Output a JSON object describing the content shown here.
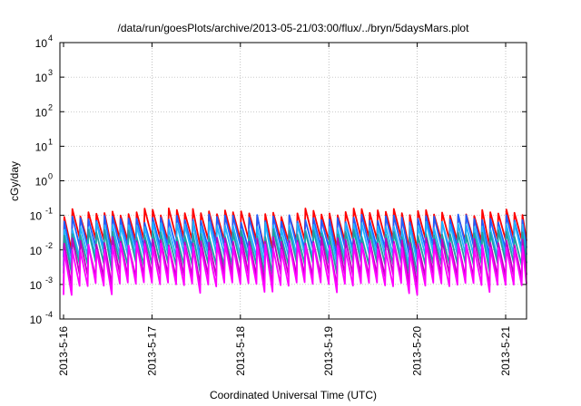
{
  "chart_data": {
    "type": "line",
    "title": "/data/run/goesPlots/archive/2013-05-21/03:00/flux/../bryn/5daysMars.plot",
    "xlabel": "Coordinated Universal Time (UTC)",
    "ylabel": "cGy/day",
    "yscale": "log",
    "ylim": [
      0.0001,
      10000
    ],
    "xlim": [
      "2013-05-16",
      "2013-05-21 03:00"
    ],
    "x_ticks": [
      "2013-5-16",
      "2013-5-17",
      "2013-5-18",
      "2013-5-19",
      "2013-5-20",
      "2013-5-21"
    ],
    "y_ticks": [
      {
        "base": "10",
        "exp": "-4"
      },
      {
        "base": "10",
        "exp": "-3"
      },
      {
        "base": "10",
        "exp": "-2"
      },
      {
        "base": "10",
        "exp": "-1"
      },
      {
        "base": "10",
        "exp": "0"
      },
      {
        "base": "10",
        "exp": "1"
      },
      {
        "base": "10",
        "exp": "2"
      },
      {
        "base": "10",
        "exp": "3"
      },
      {
        "base": "10",
        "exp": "4"
      }
    ],
    "grid": true,
    "legend": "none",
    "pattern": {
      "description": "sawtooth: sharp rise at each step then decay; roughly 11 cycles per day",
      "cycles_per_day": 11,
      "deep_dips_days": [
        0.05,
        0.55,
        1.55,
        2.32,
        3.12,
        3.95,
        4.82
      ]
    },
    "series": [
      {
        "color": "#ff0000",
        "peak": 0.12,
        "trough": 0.02
      },
      {
        "color": "#1f5fff",
        "peak": 0.08,
        "trough": 0.012
      },
      {
        "color": "#1fb4ff",
        "peak": 0.05,
        "trough": 0.007
      },
      {
        "color": "#20a0a0",
        "peak": 0.03,
        "trough": 0.004
      },
      {
        "color": "#c000c0",
        "peak": 0.018,
        "trough": 0.0018
      },
      {
        "color": "#ff00ff",
        "peak": 0.012,
        "trough": 0.001
      }
    ]
  }
}
